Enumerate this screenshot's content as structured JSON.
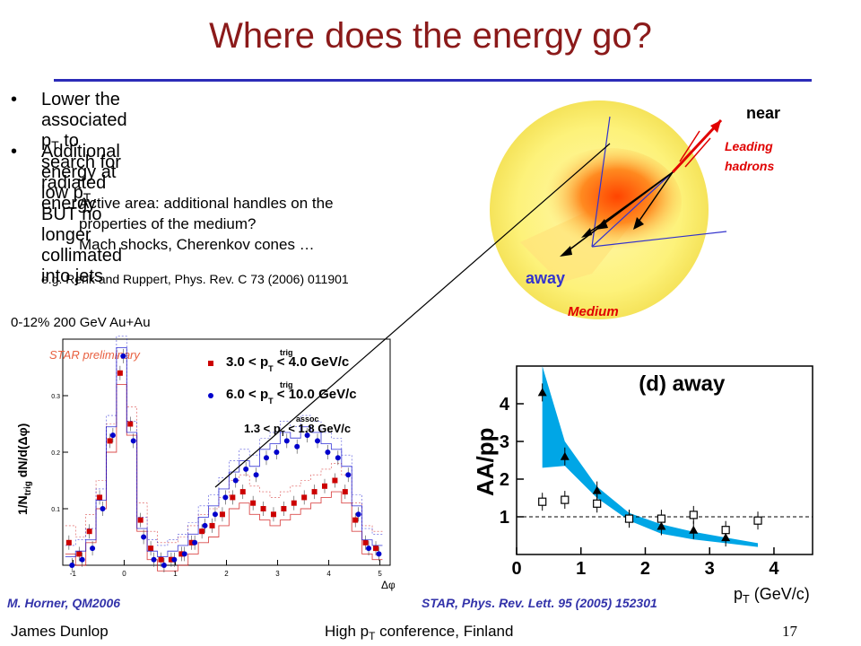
{
  "slide": {
    "title": "Where does the energy go?",
    "bullets": [
      {
        "pre": "Lower the associated p",
        "sub": "T",
        "post": " to search for",
        "line2": "radiated energy"
      },
      {
        "pre": "Additional energy at low p",
        "sub": "T",
        "post": " BUT no longer",
        "line2": "collimated into jets"
      }
    ],
    "subpoints": [
      "Active area: additional handles on the",
      "properties of the medium?",
      "Mach shocks, Cherenkov cones …"
    ],
    "reference": "e.g. Renk and Ruppert, Phys. Rev. C 73 (2006) 011901",
    "footer": {
      "author": "James Dunlop",
      "conf_pre": "High p",
      "conf_sub": "T",
      "conf_post": " conference, Finland",
      "page": "17"
    }
  },
  "diagram": {
    "near": "near",
    "leading_line1": "Leading",
    "leading_line2": "hadrons",
    "away": "away",
    "medium": "Medium",
    "colors": {
      "medium": "#fdf27a",
      "hot": "#ff4400",
      "arrow": "#e00000",
      "axis": "#3333cc"
    }
  },
  "chart_data": [
    {
      "type": "scatter",
      "caption": "0-12% 200 GeV Au+Au",
      "watermark": "STAR preliminary",
      "ylabel_pre": "1/N",
      "ylabel_sub": "trig",
      "ylabel_post": " dN/d(Δφ)",
      "xlabel": "Δφ",
      "xlim": [
        -1.2,
        5.2
      ],
      "ylim": [
        0,
        0.4
      ],
      "xticks": [
        "-1",
        "0",
        "1",
        "2",
        "3",
        "4",
        "5"
      ],
      "yticks": [
        "0.1",
        "0.2",
        "0.3"
      ],
      "legend_cut": "1.3 < p",
      "legend_cut_sup": "assoc",
      "legend_cut_sub": "T",
      "legend_cut_post": " < 1.8 GeV/c",
      "series": [
        {
          "name_pre": "3.0 < p",
          "name_sup": "trig",
          "name_sub": "T",
          "name_post": " < 4.0 GeV/c",
          "color": "#cc0000",
          "marker": "square",
          "x": [
            -1.05,
            -0.85,
            -0.65,
            -0.45,
            -0.25,
            -0.05,
            0.15,
            0.35,
            0.55,
            0.75,
            0.95,
            1.15,
            1.35,
            1.55,
            1.75,
            1.95,
            2.15,
            2.35,
            2.55,
            2.75,
            2.95,
            3.15,
            3.35,
            3.55,
            3.75,
            3.95,
            4.15,
            4.35,
            4.55,
            4.75,
            4.95
          ],
          "y": [
            0.04,
            0.02,
            0.06,
            0.12,
            0.22,
            0.34,
            0.25,
            0.08,
            0.03,
            0.01,
            0.01,
            0.02,
            0.04,
            0.06,
            0.07,
            0.09,
            0.12,
            0.13,
            0.11,
            0.1,
            0.09,
            0.1,
            0.11,
            0.12,
            0.13,
            0.14,
            0.15,
            0.13,
            0.08,
            0.04,
            0.03
          ]
        },
        {
          "name_pre": "6.0 < p",
          "name_sup": "trig",
          "name_sub": "T",
          "name_post": " < 10.0 GeV/c",
          "color": "#0000cc",
          "marker": "circle",
          "x": [
            -1.05,
            -0.85,
            -0.65,
            -0.45,
            -0.25,
            -0.05,
            0.15,
            0.35,
            0.55,
            0.75,
            0.95,
            1.15,
            1.35,
            1.55,
            1.75,
            1.95,
            2.15,
            2.35,
            2.55,
            2.75,
            2.95,
            3.15,
            3.35,
            3.55,
            3.75,
            3.95,
            4.15,
            4.35,
            4.55,
            4.75,
            4.95
          ],
          "y": [
            0.0,
            0.01,
            0.03,
            0.1,
            0.23,
            0.37,
            0.22,
            0.05,
            0.01,
            0.0,
            0.01,
            0.02,
            0.04,
            0.07,
            0.09,
            0.12,
            0.15,
            0.17,
            0.16,
            0.19,
            0.2,
            0.22,
            0.21,
            0.23,
            0.22,
            0.2,
            0.19,
            0.16,
            0.09,
            0.03,
            0.02
          ]
        }
      ],
      "source": "M. Horner, QM2006"
    },
    {
      "type": "scatter",
      "panel_label": "(d) away",
      "ylabel": "AA/pp",
      "xlabel_pre": "p",
      "xlabel_sub": "T",
      "xlabel_post": " (GeV/c)",
      "xlim": [
        0,
        4.6
      ],
      "ylim": [
        0,
        5
      ],
      "xticks": [
        "0",
        "1",
        "2",
        "3",
        "4"
      ],
      "yticks": [
        "1",
        "2",
        "3",
        "4"
      ],
      "reference_line": 1,
      "band": {
        "x": [
          0.4,
          0.75,
          1.25,
          1.75,
          2.25,
          2.75,
          3.25,
          3.75
        ],
        "low": [
          2.3,
          2.35,
          1.5,
          0.9,
          0.55,
          0.4,
          0.3,
          0.2
        ],
        "high": [
          5.0,
          3.0,
          1.8,
          1.1,
          0.8,
          0.6,
          0.45,
          0.3
        ],
        "color": "#00a6e6"
      },
      "series": [
        {
          "name": "triangles",
          "marker": "triangle",
          "x": [
            0.4,
            0.75,
            1.25,
            1.75,
            2.25,
            2.75,
            3.25
          ],
          "y": [
            4.3,
            2.6,
            1.7,
            0.95,
            0.75,
            0.65,
            0.45
          ]
        },
        {
          "name": "open squares",
          "marker": "open-square",
          "x": [
            0.4,
            0.75,
            1.25,
            1.75,
            2.25,
            2.75,
            3.25,
            3.75
          ],
          "y": [
            1.4,
            1.45,
            1.35,
            0.95,
            0.95,
            1.05,
            0.65,
            0.9
          ]
        }
      ],
      "source": "STAR, Phys. Rev. Lett. 95 (2005) 152301"
    }
  ]
}
